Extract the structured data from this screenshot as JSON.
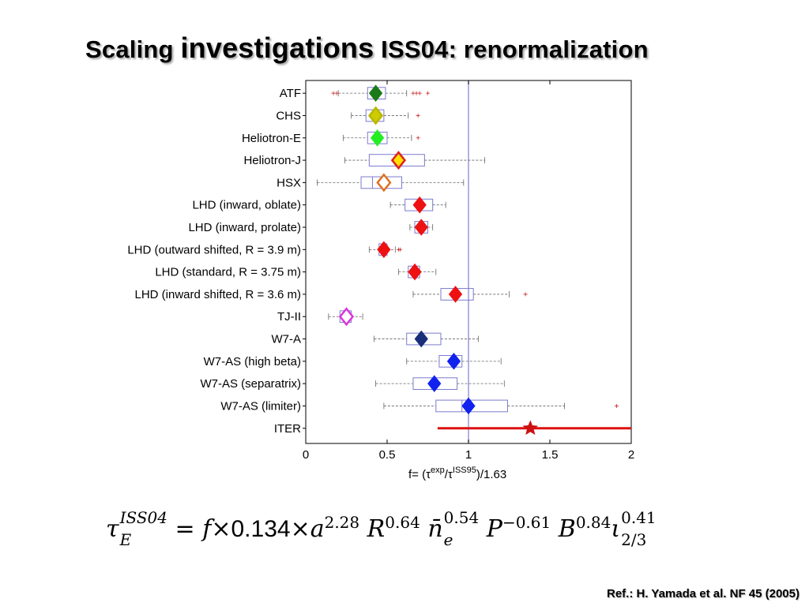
{
  "slide": {
    "title_part1": "Scaling ",
    "title_part2": "investigations",
    "title_part3": " ISS04: renormalization",
    "reference": "Ref.: H. Yamada et al. NF 45 (2005)"
  },
  "formula": {
    "tau": "τ",
    "tau_sup": "ISS04",
    "tau_sub": "E",
    "eq": " = ",
    "f": "f",
    "times1": "×",
    "coef": "0.134",
    "times2": "×",
    "a": "a",
    "a_exp": "2.28",
    "R": "R",
    "R_exp": "0.64",
    "n": "n̄",
    "n_sub": "e",
    "n_exp": "0.54",
    "P": "P",
    "P_exp": "−0.61",
    "B": "B",
    "B_exp": "0.84",
    "iota": "ι",
    "iota_sub": "2/3",
    "iota_exp": "0.41"
  },
  "chart_data": {
    "type": "boxplot",
    "x_ticks": [
      "0",
      "0.5",
      "1",
      "1.5",
      "2"
    ],
    "x_tick_values": [
      0,
      0.5,
      1,
      1.5,
      2
    ],
    "xlim": [
      0,
      2
    ],
    "xlabel": {
      "prefix": "f= (",
      "tau1": "τ",
      "sup1": "exp",
      "slash": "/",
      "tau2": "τ",
      "sup2": "ISS95",
      "suffix": ")/1.63"
    },
    "reference_line_x": 1,
    "reference_line_color": "#9999dd",
    "box_color": "#7b7bd0",
    "whisker_color": "#666666",
    "outlier_color": "#cc2222",
    "grid": false,
    "categories": [
      {
        "label": "ATF",
        "wlo": 0.2,
        "q1": 0.38,
        "med": 0.43,
        "q3": 0.49,
        "whi": 0.62,
        "outliers": [
          0.17,
          0.19,
          0.66,
          0.68,
          0.7,
          0.75
        ],
        "marker": 0.43,
        "marker_type": "diamond",
        "fill": "#1a7a1a",
        "stroke": "#1a7a1a"
      },
      {
        "label": "CHS",
        "wlo": 0.28,
        "q1": 0.37,
        "med": 0.42,
        "q3": 0.48,
        "whi": 0.63,
        "outliers": [
          0.69
        ],
        "marker": 0.43,
        "marker_type": "diamond",
        "fill": "#cccc00",
        "stroke": "#b8b800"
      },
      {
        "label": "Heliotron-E",
        "wlo": 0.23,
        "q1": 0.38,
        "med": 0.43,
        "q3": 0.5,
        "whi": 0.65,
        "outliers": [
          0.69
        ],
        "marker": 0.44,
        "marker_type": "diamond",
        "fill": "#22ee22",
        "stroke": "#22ee22"
      },
      {
        "label": "Heliotron-J",
        "wlo": 0.24,
        "q1": 0.39,
        "med": 0.55,
        "q3": 0.73,
        "whi": 1.1,
        "outliers": [],
        "marker": 0.57,
        "marker_type": "diamond",
        "fill": "#ffe000",
        "stroke": "#dd2222"
      },
      {
        "label": "HSX",
        "wlo": 0.07,
        "q1": 0.34,
        "med": 0.41,
        "q3": 0.59,
        "whi": 0.97,
        "outliers": [],
        "marker": 0.48,
        "marker_type": "diamond-open",
        "fill": "#ffffff",
        "stroke": "#e07020"
      },
      {
        "label": "LHD (inward, oblate)",
        "wlo": 0.52,
        "q1": 0.61,
        "med": 0.69,
        "q3": 0.78,
        "whi": 0.86,
        "outliers": [],
        "marker": 0.7,
        "marker_type": "diamond",
        "fill": "#ee1111",
        "stroke": "#ee1111"
      },
      {
        "label": "LHD (inward, prolate)",
        "wlo": 0.64,
        "q1": 0.67,
        "med": 0.7,
        "q3": 0.75,
        "whi": 0.78,
        "outliers": [],
        "marker": 0.71,
        "marker_type": "diamond",
        "fill": "#ee1111",
        "stroke": "#ee1111"
      },
      {
        "label": "LHD (outward shifted, R = 3.9 m)",
        "wlo": 0.39,
        "q1": 0.45,
        "med": 0.48,
        "q3": 0.5,
        "whi": 0.55,
        "outliers": [
          0.57,
          0.58
        ],
        "marker": 0.48,
        "marker_type": "diamond",
        "fill": "#ee1111",
        "stroke": "#ee1111"
      },
      {
        "label": "LHD (standard, R = 3.75 m)",
        "wlo": 0.57,
        "q1": 0.63,
        "med": 0.66,
        "q3": 0.7,
        "whi": 0.8,
        "outliers": [],
        "marker": 0.67,
        "marker_type": "diamond",
        "fill": "#ee1111",
        "stroke": "#ee1111"
      },
      {
        "label": "LHD (inward shifted, R = 3.6 m)",
        "wlo": 0.66,
        "q1": 0.83,
        "med": 0.92,
        "q3": 1.03,
        "whi": 1.25,
        "outliers": [
          1.35
        ],
        "marker": 0.92,
        "marker_type": "diamond",
        "fill": "#ee1111",
        "stroke": "#ee1111"
      },
      {
        "label": "TJ-II",
        "wlo": 0.14,
        "q1": 0.21,
        "med": 0.25,
        "q3": 0.28,
        "whi": 0.35,
        "outliers": [],
        "marker": 0.25,
        "marker_type": "diamond-open",
        "fill": "#ffffff",
        "stroke": "#dd33dd"
      },
      {
        "label": "W7-A",
        "wlo": 0.42,
        "q1": 0.62,
        "med": 0.7,
        "q3": 0.83,
        "whi": 1.06,
        "outliers": [],
        "marker": 0.71,
        "marker_type": "diamond",
        "fill": "#1a2f7a",
        "stroke": "#1a2f7a"
      },
      {
        "label": "W7-AS (high beta)",
        "wlo": 0.62,
        "q1": 0.82,
        "med": 0.9,
        "q3": 0.96,
        "whi": 1.2,
        "outliers": [],
        "marker": 0.91,
        "marker_type": "diamond",
        "fill": "#1122ee",
        "stroke": "#1122ee"
      },
      {
        "label": "W7-AS (separatrix)",
        "wlo": 0.43,
        "q1": 0.66,
        "med": 0.78,
        "q3": 0.93,
        "whi": 1.22,
        "outliers": [],
        "marker": 0.79,
        "marker_type": "diamond",
        "fill": "#1122ee",
        "stroke": "#1122ee"
      },
      {
        "label": "W7-AS (limiter)",
        "wlo": 0.48,
        "q1": 0.8,
        "med": 0.96,
        "q3": 1.24,
        "whi": 1.59,
        "outliers": [
          1.91
        ],
        "marker": 1.0,
        "marker_type": "diamond",
        "fill": "#1122ee",
        "stroke": "#1122ee"
      },
      {
        "label": "ITER",
        "range": [
          0.81,
          2.0
        ],
        "marker": 1.38,
        "marker_type": "star",
        "fill": "#cc1111",
        "stroke": "#cc1111",
        "line_color": "#dd1111"
      }
    ]
  }
}
